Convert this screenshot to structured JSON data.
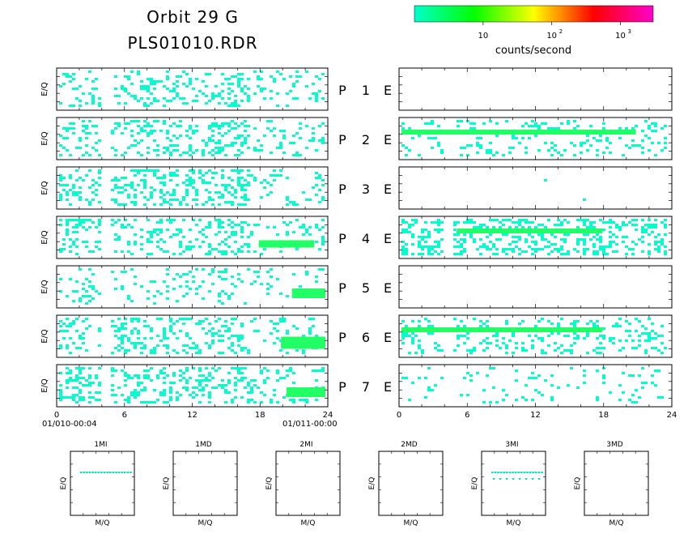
{
  "header": {
    "title_line1": "Orbit 29 G",
    "title_line2": "PLS01010.RDR"
  },
  "colorbar": {
    "colors": [
      "#00ffcc",
      "#00ff00",
      "#ffff00",
      "#ff0000",
      "#ff00cc"
    ],
    "tick_labels": [
      {
        "base": "10",
        "exp": ""
      },
      {
        "base": "10",
        "exp": "2"
      },
      {
        "base": "10",
        "exp": "3"
      }
    ],
    "tick_values": [
      10,
      100,
      1000
    ],
    "range": [
      1,
      3000
    ],
    "scale": "log",
    "label": "counts/second"
  },
  "axes": {
    "ylabel": "E/Q",
    "left_xticks": [
      "0",
      "6",
      "12",
      "18",
      "24"
    ],
    "right_xticks": [
      "0",
      "6",
      "12",
      "18",
      "24"
    ],
    "start_time": "01/010-00:04",
    "end_time": "01/011-00:00"
  },
  "mq_panels": {
    "titles": [
      "1MI",
      "1MD",
      "2MI",
      "2MD",
      "3MI",
      "3MD"
    ],
    "xlabel": "M/Q",
    "ylabel": "E/Q"
  },
  "chart_data": {
    "type": "heatmap",
    "x_range": [
      0,
      24
    ],
    "x_unit": "hour",
    "channels": [
      {
        "label": "P 1 E",
        "P": "P",
        "num": "1",
        "E": "E",
        "left_density": 0.22,
        "right_density": 0.0,
        "left_hot": [],
        "right_hot": []
      },
      {
        "label": "P 2 E",
        "P": "P",
        "num": "2",
        "E": "E",
        "left_density": 0.26,
        "right_density": 0.14,
        "left_hot": [],
        "right_hot": [
          [
            0,
            21,
            2,
            2
          ]
        ]
      },
      {
        "label": "P 3 E",
        "P": "P",
        "num": "3",
        "E": "E",
        "left_density": 0.28,
        "right_density": 0.004,
        "left_hot": [],
        "right_hot": []
      },
      {
        "label": "P 4 E",
        "P": "P",
        "num": "4",
        "E": "E",
        "left_density": 0.26,
        "right_density": 0.32,
        "left_hot": [
          [
            18,
            23,
            3,
            3
          ]
        ],
        "right_hot": [
          [
            5,
            18,
            2,
            2
          ]
        ]
      },
      {
        "label": "P 5 E",
        "P": "P",
        "num": "5",
        "E": "E",
        "left_density": 0.14,
        "right_density": 0.0,
        "left_hot": [
          [
            21,
            24,
            3,
            4
          ]
        ],
        "right_hot": []
      },
      {
        "label": "P 6 E",
        "P": "P",
        "num": "6",
        "E": "E",
        "left_density": 0.24,
        "right_density": 0.18,
        "left_hot": [
          [
            20,
            24,
            3,
            5
          ]
        ],
        "right_hot": [
          [
            0,
            18,
            1,
            2
          ]
        ]
      },
      {
        "label": "P 7 E",
        "P": "P",
        "num": "7",
        "E": "E",
        "left_density": 0.28,
        "right_density": 0.08,
        "left_hot": [
          [
            20.5,
            24,
            2,
            4
          ]
        ],
        "right_hot": []
      }
    ],
    "mq_lines": [
      {
        "panel": "1MI",
        "has_line": true
      },
      {
        "panel": "1MD",
        "has_line": false
      },
      {
        "panel": "2MI",
        "has_line": false
      },
      {
        "panel": "2MD",
        "has_line": false
      },
      {
        "panel": "3MI",
        "has_line": true,
        "second_line": true
      },
      {
        "panel": "3MD",
        "has_line": false
      }
    ]
  }
}
